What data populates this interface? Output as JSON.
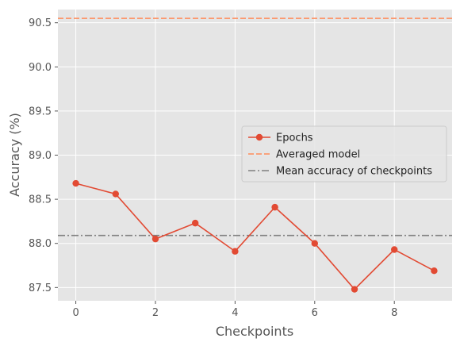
{
  "chart_data": {
    "type": "line",
    "xlabel": "Checkpoints",
    "ylabel": "Accuracy (%)",
    "xlim": [
      -0.45,
      9.45
    ],
    "ylim": [
      87.35,
      90.65
    ],
    "x_ticks": [
      0,
      2,
      4,
      6,
      8
    ],
    "y_ticks": [
      87.5,
      88.0,
      88.5,
      89.0,
      89.5,
      90.0,
      90.5
    ],
    "x_tick_labels": [
      "0",
      "2",
      "4",
      "6",
      "8"
    ],
    "y_tick_labels": [
      "87.5",
      "88.0",
      "88.5",
      "89.0",
      "89.5",
      "90.0",
      "90.5"
    ],
    "grid": true,
    "legend_position": "center-right",
    "series": [
      {
        "name": "Epochs",
        "color": "#E24A33",
        "marker": "circle",
        "x": [
          0,
          1,
          2,
          3,
          4,
          5,
          6,
          7,
          8,
          9
        ],
        "y": [
          88.68,
          88.56,
          88.05,
          88.23,
          87.91,
          88.41,
          88.0,
          87.48,
          87.93,
          87.69
        ]
      }
    ],
    "reference_lines": [
      {
        "name": "Averaged model",
        "value": 90.55,
        "color": "#FF8C5A",
        "style": "dashed"
      },
      {
        "name": "Mean accuracy of checkpoints",
        "value": 88.09,
        "color": "#808080",
        "style": "dashdot"
      }
    ]
  }
}
